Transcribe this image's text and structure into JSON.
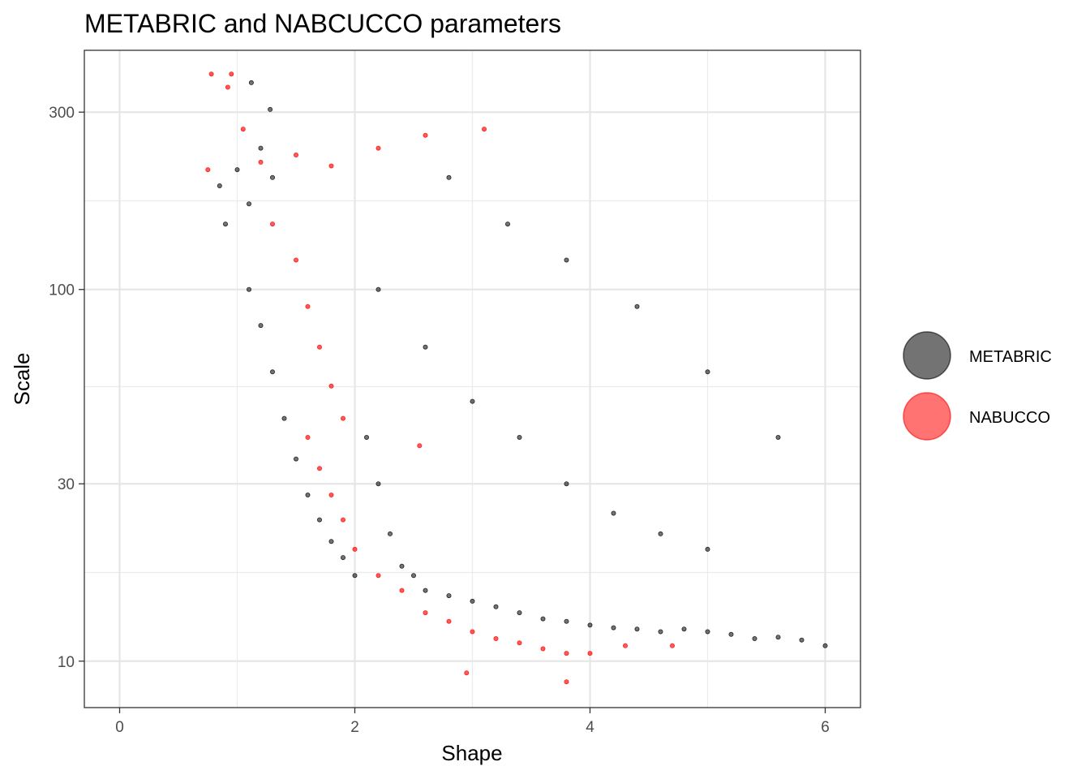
{
  "chart_data": {
    "type": "scatter",
    "title": "METABRIC and NABCUCCO parameters",
    "xlabel": "Shape",
    "ylabel": "Scale",
    "x_scale": "linear",
    "y_scale": "log",
    "xlim": [
      -0.3,
      6.3
    ],
    "ylim": [
      7.5,
      440
    ],
    "x_ticks": [
      0,
      2,
      4,
      6
    ],
    "x_tick_labels": [
      "0",
      "2",
      "4",
      "6"
    ],
    "x_minor_ticks": [
      1,
      3,
      5
    ],
    "y_ticks": [
      10,
      30,
      100,
      300
    ],
    "y_tick_labels": [
      "10",
      "30",
      "100",
      "300"
    ],
    "y_minor_ticks": [
      17.32,
      54.77,
      173.2
    ],
    "grid": true,
    "legend_position": "right",
    "point_alpha": 0.12,
    "series": [
      {
        "name": "METABRIC",
        "color": "#000000",
        "points": [
          [
            0.85,
            190
          ],
          [
            0.9,
            150
          ],
          [
            1.0,
            210
          ],
          [
            1.1,
            170
          ],
          [
            1.2,
            240
          ],
          [
            1.3,
            200
          ],
          [
            1.1,
            100
          ],
          [
            1.2,
            80
          ],
          [
            1.3,
            60
          ],
          [
            1.4,
            45
          ],
          [
            1.5,
            35
          ],
          [
            1.6,
            28
          ],
          [
            1.7,
            24
          ],
          [
            1.8,
            21
          ],
          [
            1.9,
            19
          ],
          [
            2.0,
            17
          ],
          [
            2.1,
            40
          ],
          [
            2.2,
            30
          ],
          [
            2.3,
            22
          ],
          [
            2.4,
            18
          ],
          [
            2.5,
            17
          ],
          [
            2.6,
            15.5
          ],
          [
            2.8,
            15
          ],
          [
            3.0,
            14.5
          ],
          [
            3.2,
            14
          ],
          [
            3.4,
            13.5
          ],
          [
            3.6,
            13
          ],
          [
            3.8,
            12.8
          ],
          [
            4.0,
            12.5
          ],
          [
            4.2,
            12.3
          ],
          [
            4.4,
            12.2
          ],
          [
            4.6,
            12.0
          ],
          [
            4.8,
            12.2
          ],
          [
            5.0,
            12.0
          ],
          [
            5.2,
            11.8
          ],
          [
            5.4,
            11.5
          ],
          [
            5.6,
            11.6
          ],
          [
            5.8,
            11.4
          ],
          [
            6.0,
            11.0
          ],
          [
            2.2,
            100
          ],
          [
            2.6,
            70
          ],
          [
            3.0,
            50
          ],
          [
            3.4,
            40
          ],
          [
            3.8,
            30
          ],
          [
            4.2,
            25
          ],
          [
            4.6,
            22
          ],
          [
            5.0,
            20
          ],
          [
            2.8,
            200
          ],
          [
            3.3,
            150
          ],
          [
            3.8,
            120
          ],
          [
            4.4,
            90
          ],
          [
            5.0,
            60
          ],
          [
            5.6,
            40
          ],
          [
            1.12,
            360
          ],
          [
            1.28,
            305
          ]
        ]
      },
      {
        "name": "NABUCCO",
        "color": "#ff0000",
        "points": [
          [
            0.78,
            380
          ],
          [
            0.95,
            380
          ],
          [
            0.92,
            350
          ],
          [
            1.05,
            270
          ],
          [
            0.75,
            210
          ],
          [
            1.2,
            220
          ],
          [
            1.5,
            230
          ],
          [
            1.8,
            215
          ],
          [
            2.2,
            240
          ],
          [
            2.6,
            260
          ],
          [
            3.1,
            270
          ],
          [
            1.3,
            150
          ],
          [
            1.5,
            120
          ],
          [
            1.6,
            90
          ],
          [
            1.7,
            70
          ],
          [
            1.8,
            55
          ],
          [
            1.9,
            45
          ],
          [
            1.6,
            40
          ],
          [
            1.7,
            33
          ],
          [
            1.8,
            28
          ],
          [
            1.9,
            24
          ],
          [
            2.0,
            20
          ],
          [
            2.2,
            17
          ],
          [
            2.4,
            15.5
          ],
          [
            2.6,
            13.5
          ],
          [
            2.8,
            12.8
          ],
          [
            3.0,
            12
          ],
          [
            3.2,
            11.5
          ],
          [
            3.4,
            11.2
          ],
          [
            3.6,
            10.8
          ],
          [
            3.8,
            10.5
          ],
          [
            4.0,
            10.5
          ],
          [
            4.3,
            11
          ],
          [
            4.7,
            11
          ],
          [
            3.8,
            8.8
          ],
          [
            2.95,
            9.3
          ],
          [
            2.55,
            38
          ]
        ]
      }
    ]
  },
  "legend": {
    "items": [
      {
        "label": "METABRIC",
        "color": "#000000"
      },
      {
        "label": "NABUCCO",
        "color": "#ff0000"
      }
    ]
  }
}
